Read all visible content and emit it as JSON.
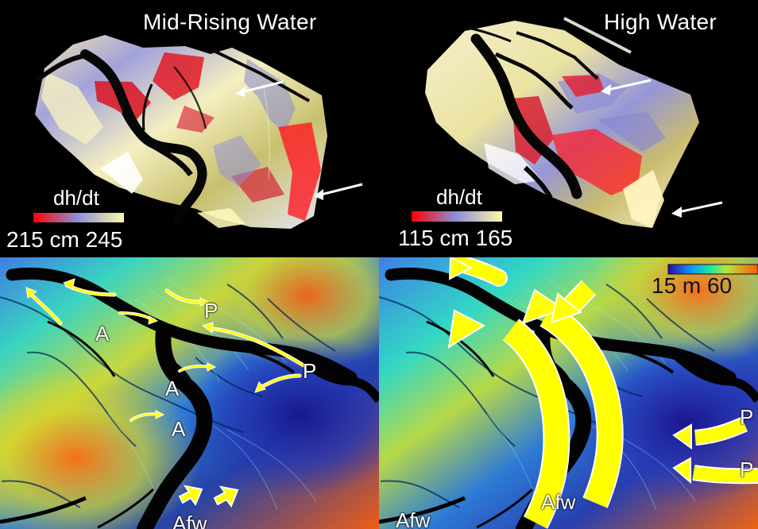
{
  "panels": {
    "mid_rising": {
      "title": "Mid-Rising Water",
      "legend_title": "dh/dt",
      "legend_range": "215 cm 245"
    },
    "high": {
      "title": "High Water",
      "legend_title": "dh/dt",
      "legend_range": "115 cm 165"
    },
    "lower_left": {
      "labels": {
        "a1": "A",
        "a2": "A",
        "a3": "A",
        "p1": "P",
        "p2": "P",
        "afw": "Afw"
      }
    },
    "lower_right": {
      "labels": {
        "afw1": "Afw",
        "afw2": "Afw",
        "p1": "P",
        "p2": "P"
      },
      "height_scale": {
        "range": "15  m  60"
      }
    }
  },
  "colors": {
    "background": "#000000",
    "arrow_fill": "#ffff00",
    "arrow_stroke": "#ffffff",
    "dhdt_low": "#ff0000",
    "dhdt_mid": "#8d8dd8",
    "dhdt_high": "#fff7a8",
    "height_low": "#1f1fb9",
    "height_mid": "#26d8b3",
    "height_high": "#ff6600"
  }
}
